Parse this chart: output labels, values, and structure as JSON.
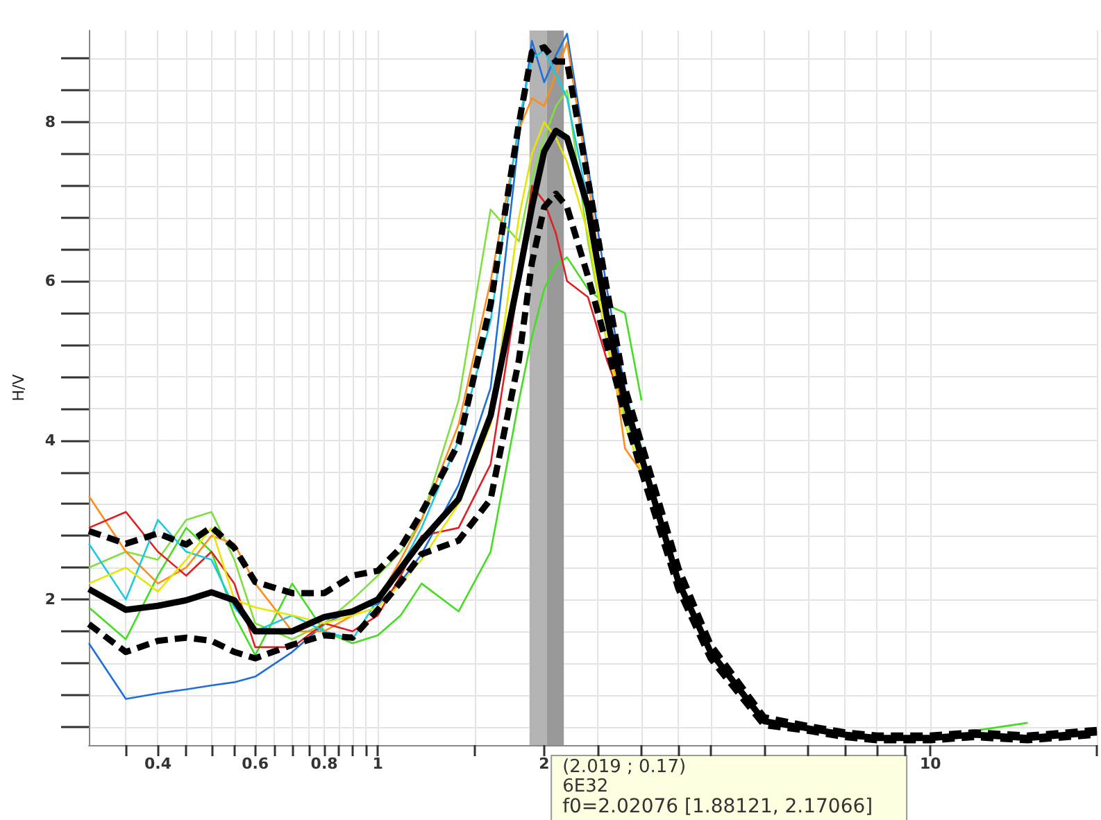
{
  "chart_data": {
    "type": "line",
    "ylabel": "H/V",
    "x": [
      0.3,
      0.35,
      0.4,
      0.45,
      0.5,
      0.55,
      0.6,
      0.7,
      0.8,
      0.9,
      1,
      1.1,
      1.2,
      1.4,
      1.6,
      1.8,
      1.9,
      2,
      2.1,
      2.2,
      2.4,
      2.6,
      2.8,
      3,
      3.5,
      4,
      5,
      6,
      7,
      8,
      10,
      12,
      15,
      20
    ],
    "series": [
      {
        "color": "#1e6fd9",
        "values": [
          1.45,
          0.75,
          0.82,
          0.87,
          0.92,
          0.96,
          1.03,
          1.34,
          1.69,
          1.87,
          1.94,
          2.22,
          2.57,
          3.44,
          4.66,
          7.8,
          9.02,
          8.5,
          8.84,
          9.11,
          7.45,
          5.88,
          4.66,
          3.79,
          null,
          null,
          null,
          null,
          null,
          null,
          null,
          null,
          null,
          null
        ]
      },
      {
        "color": "#44dd22",
        "values": [
          1.9,
          1.5,
          2.3,
          2.9,
          2.6,
          1.8,
          1.3,
          2.2,
          1.6,
          1.45,
          1.55,
          1.8,
          2.2,
          1.85,
          2.6,
          4.5,
          5.3,
          5.9,
          6.2,
          6.3,
          5.9,
          5.7,
          5.6,
          4.5,
          null,
          null,
          null,
          null,
          null,
          null,
          null,
          0.35,
          0.45,
          null
        ]
      },
      {
        "color": "#7fe040",
        "values": [
          2.4,
          2.6,
          2.5,
          3.0,
          3.1,
          2.5,
          1.7,
          1.5,
          1.7,
          2.0,
          2.3,
          2.6,
          3.0,
          4.5,
          6.9,
          6.5,
          7.3,
          7.8,
          8.2,
          8.4,
          6.5,
          5.2,
          4.3,
          3.7,
          null,
          null,
          null,
          null,
          null,
          null,
          null,
          null,
          null,
          null
        ]
      },
      {
        "color": "#ff8c1a",
        "values": [
          3.3,
          2.6,
          2.2,
          2.4,
          2.8,
          2.7,
          2.2,
          1.6,
          1.6,
          1.8,
          2.0,
          2.5,
          3.0,
          4.2,
          6.0,
          7.9,
          8.3,
          8.2,
          8.6,
          9.0,
          7.3,
          5.5,
          3.9,
          3.6,
          null,
          null,
          null,
          null,
          null,
          null,
          null,
          null,
          null,
          null
        ]
      },
      {
        "color": "#e02020",
        "values": [
          2.9,
          3.1,
          2.6,
          2.3,
          2.6,
          2.2,
          1.4,
          1.4,
          1.7,
          1.6,
          1.8,
          2.3,
          2.8,
          2.9,
          3.7,
          6.0,
          7.2,
          7.0,
          6.6,
          6.0,
          5.8,
          5.0,
          4.4,
          3.8,
          null,
          null,
          null,
          null,
          null,
          null,
          null,
          null,
          null,
          null
        ]
      },
      {
        "color": "#1ec8e0",
        "values": [
          2.7,
          2.0,
          3.0,
          2.6,
          2.5,
          1.9,
          1.6,
          1.8,
          1.6,
          1.5,
          2.0,
          2.4,
          2.9,
          4.0,
          5.5,
          8.0,
          8.8,
          8.9,
          8.6,
          8.3,
          7.0,
          5.6,
          4.6,
          3.9,
          null,
          null,
          null,
          null,
          null,
          null,
          null,
          null,
          null,
          null
        ]
      },
      {
        "color": "#e6e600",
        "values": [
          2.2,
          2.4,
          2.1,
          2.5,
          2.9,
          2.0,
          1.9,
          1.8,
          1.7,
          1.8,
          1.9,
          2.2,
          2.5,
          3.2,
          4.2,
          6.8,
          7.6,
          8.0,
          7.8,
          7.5,
          6.6,
          5.2,
          4.2,
          3.6,
          null,
          null,
          null,
          null,
          null,
          null,
          null,
          null,
          null,
          null
        ]
      },
      {
        "color": "#000000",
        "line_style": "dashed",
        "values": [
          2.86,
          2.7,
          2.83,
          2.69,
          2.91,
          2.65,
          2.22,
          2.08,
          2.08,
          2.3,
          2.36,
          2.65,
          3.09,
          3.96,
          5.71,
          7.98,
          8.88,
          8.94,
          8.76,
          8.76,
          7.28,
          5.88,
          4.66,
          3.96,
          2.39,
          1.43,
          0.52,
          0.41,
          0.33,
          0.29,
          0.29,
          0.33,
          0.29,
          0.36
        ]
      },
      {
        "color": "#000000",
        "line_style": "dashed",
        "values": [
          1.69,
          1.34,
          1.48,
          1.52,
          1.48,
          1.34,
          1.26,
          1.43,
          1.55,
          1.52,
          1.87,
          2.22,
          2.57,
          2.74,
          3.26,
          5.01,
          6.23,
          6.93,
          7.1,
          6.93,
          6.06,
          5.18,
          4.31,
          3.61,
          2.13,
          1.26,
          0.42,
          0.35,
          0.27,
          0.23,
          0.23,
          0.27,
          0.23,
          0.3
        ]
      },
      {
        "color": "#000000",
        "line_style": "solid",
        "values": [
          2.13,
          1.87,
          1.92,
          1.99,
          2.09,
          1.99,
          1.6,
          1.6,
          1.78,
          1.85,
          2.0,
          2.39,
          2.74,
          3.26,
          4.31,
          6.06,
          6.93,
          7.63,
          7.89,
          7.8,
          6.93,
          5.53,
          4.49,
          3.79,
          2.22,
          1.34,
          0.47,
          0.38,
          0.3,
          0.26,
          0.26,
          0.3,
          0.26,
          0.33
        ]
      }
    ],
    "log": "x",
    "marker": "none",
    "grid": true,
    "xlim": [
      0.3,
      20
    ],
    "xticks": [
      {
        "value": 0.35,
        "label": null
      },
      0.4,
      {
        "value": 0.45,
        "label": null
      },
      {
        "value": 0.5,
        "label": null
      },
      {
        "value": 0.55,
        "label": null
      },
      0.6,
      {
        "value": 0.65,
        "label": null
      },
      {
        "value": 0.7,
        "label": null
      },
      {
        "value": 0.75,
        "label": null
      },
      0.8,
      {
        "value": 0.85,
        "label": null
      },
      {
        "value": 0.9,
        "label": null
      },
      {
        "value": 0.95,
        "label": null
      },
      1,
      {
        "value": 1.5,
        "label": null
      },
      2,
      {
        "value": 2.5,
        "label": null
      },
      {
        "value": 3,
        "label": null
      },
      {
        "value": 3.5,
        "label": null
      },
      {
        "value": 4,
        "label": null
      },
      {
        "value": 5,
        "label": null
      },
      {
        "value": 6,
        "label": null
      },
      {
        "value": 7,
        "label": null
      },
      {
        "value": 8,
        "label": null
      },
      {
        "value": 9,
        "label": null
      },
      10,
      {
        "value": 20,
        "label": null
      }
    ],
    "ylim": [
      0.17,
      9.15
    ],
    "yticks": [
      {
        "value": 0.4,
        "label": null
      },
      {
        "value": 0.8,
        "label": null
      },
      {
        "value": 1.2,
        "label": null
      },
      {
        "value": 1.6,
        "label": null
      },
      2,
      {
        "value": 2.4,
        "label": null
      },
      {
        "value": 2.8,
        "label": null
      },
      {
        "value": 3.2,
        "label": null
      },
      {
        "value": 3.6,
        "label": null
      },
      4,
      {
        "value": 4.4,
        "label": null
      },
      {
        "value": 4.8,
        "label": null
      },
      {
        "value": 5.2,
        "label": null
      },
      {
        "value": 5.6,
        "label": null
      },
      6,
      {
        "value": 6.4,
        "label": null
      },
      {
        "value": 6.8,
        "label": null
      },
      {
        "value": 7.2,
        "label": null
      },
      {
        "value": 7.6,
        "label": null
      },
      8,
      {
        "value": 8.4,
        "label": null
      },
      {
        "value": 8.8,
        "label": null
      }
    ],
    "bands": [
      {
        "axis": "x",
        "from": 1.88121,
        "to": 2.02076,
        "color": "#b4b4b4"
      },
      {
        "axis": "x",
        "from": 2.02076,
        "to": 2.17066,
        "color": "#999999"
      }
    ],
    "annotations": [
      {
        "text": "(2.019 ; 0.17)",
        "x": 2.019,
        "y": 0.17
      },
      "6E32",
      "f0=2.02076 [1.88121, 2.17066]"
    ]
  }
}
